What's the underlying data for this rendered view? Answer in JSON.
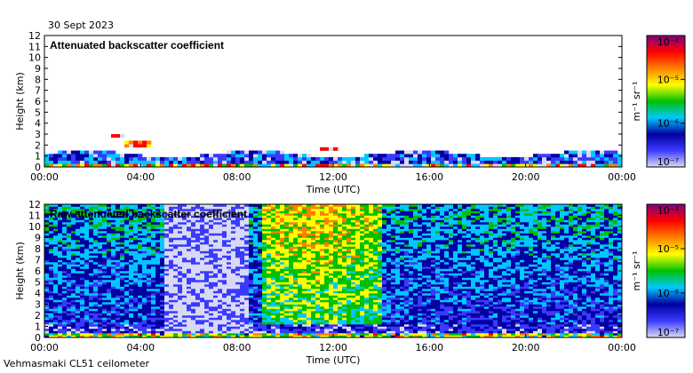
{
  "date": "30 Sept 2023",
  "footer": "Vehmasmaki CL51 ceilometer",
  "colors": {
    "frame": "#000000",
    "empty": "#ffffff",
    "scale": [
      "#d9d9f5",
      "#3a3aff",
      "#0000a0",
      "#00c8ff",
      "#00c000",
      "#ffff00",
      "#ff8000",
      "#ff0000",
      "#800080"
    ]
  },
  "chart_data": [
    {
      "type": "heatmap",
      "title": "Attenuated backscatter coefficient",
      "xlabel": "Time (UTC)",
      "ylabel": "Height (km)",
      "xticks": [
        "00:00",
        "04:00",
        "08:00",
        "12:00",
        "16:00",
        "20:00",
        "00:00"
      ],
      "xlim_hours": [
        0,
        24
      ],
      "ylim_km": [
        0,
        12
      ],
      "yticks": [
        "0",
        "1",
        "2",
        "3",
        "4",
        "5",
        "6",
        "7",
        "8",
        "9",
        "10",
        "11",
        "12"
      ],
      "colorbar": {
        "ticks": [
          "10⁻⁷",
          "10⁻⁶",
          "10⁻⁵",
          "10⁻⁴"
        ],
        "unit": "m⁻¹ sr⁻¹",
        "scale": "log"
      },
      "description_data": {
        "boundary_layer_top_km": 1.2,
        "cloud_layers": [
          {
            "t_start_h": 2.7,
            "t_end_h": 3.3,
            "height_km": 2.9
          },
          {
            "t_start_h": 3.3,
            "t_end_h": 4.5,
            "height_km": 2.1
          },
          {
            "t_start_h": 11.5,
            "t_end_h": 12.2,
            "height_km": 1.6
          }
        ]
      }
    },
    {
      "type": "heatmap",
      "title": "Raw attenuated backscatter coefficient",
      "xlabel": "Time (UTC)",
      "ylabel": "Height (km)",
      "xticks": [
        "00:00",
        "04:00",
        "08:00",
        "12:00",
        "16:00",
        "20:00",
        "00:00"
      ],
      "xlim_hours": [
        0,
        24
      ],
      "ylim_km": [
        0,
        12
      ],
      "yticks": [
        "0",
        "1",
        "2",
        "3",
        "4",
        "5",
        "6",
        "7",
        "8",
        "9",
        "10",
        "11",
        "12"
      ],
      "colorbar": {
        "ticks": [
          "10⁻⁷",
          "10⁻⁶",
          "10⁻⁵",
          "10⁻⁴"
        ],
        "unit": "m⁻¹ sr⁻¹",
        "scale": "log"
      },
      "description_data": {
        "noise_high_hours": [
          9,
          14
        ],
        "low_noise_hours": [
          5,
          8.5
        ]
      }
    }
  ]
}
